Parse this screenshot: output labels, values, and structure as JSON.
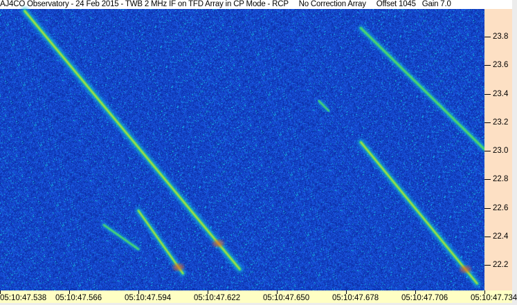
{
  "title": "AJ4CO Observatory - 24 Feb 2015 - TWB 2 MHz IF on TFD Array in CP Mode - RCP     No Correction Array     Offset 1045   Gain 7.0",
  "chart_data": {
    "type": "heatmap",
    "title": "AJ4CO Observatory - 24 Feb 2015 - TWB 2 MHz IF on TFD Array in CP Mode - RCP     No Correction Array     Offset 1045   Gain 7.0",
    "x_axis": {
      "position": "bottom",
      "range": [
        "05:10:47.538",
        "05:10:47.734"
      ],
      "ticks": [
        "05:10:47.538",
        "05:10:47.566",
        "05:10:47.594",
        "05:10:47.622",
        "05:10:47.650",
        "05:10:47.678",
        "05:10:47.706",
        "05:10:47.734"
      ]
    },
    "y_axis": {
      "position": "right",
      "range": [
        22.07,
        23.98
      ],
      "ticks": [
        "23.8",
        "23.6",
        "23.4",
        "23.2",
        "23.0",
        "22.8",
        "22.6",
        "22.4",
        "22.2"
      ]
    },
    "colormap": [
      "#0a2aa8",
      "#1a5ae0",
      "#19c8e8",
      "#30e060",
      "#f0f020",
      "#f03020"
    ],
    "background_color": "#0d36c0",
    "bursts": [
      {
        "t0": 47.548,
        "f0": 23.98,
        "t1": 47.635,
        "f1": 22.17,
        "intensity": 0.85
      },
      {
        "t0": 47.594,
        "f0": 22.58,
        "t1": 47.612,
        "f1": 22.14,
        "intensity": 0.7
      },
      {
        "t0": 47.58,
        "f0": 22.48,
        "t1": 47.594,
        "f1": 22.31,
        "intensity": 0.4
      },
      {
        "t0": 47.684,
        "f0": 23.86,
        "t1": 47.734,
        "f1": 23.01,
        "intensity": 0.6
      },
      {
        "t0": 47.684,
        "f0": 23.06,
        "t1": 47.731,
        "f1": 22.07,
        "intensity": 0.8
      },
      {
        "t0": 47.667,
        "f0": 23.35,
        "t1": 47.671,
        "f1": 23.28,
        "intensity": 0.35
      }
    ]
  }
}
